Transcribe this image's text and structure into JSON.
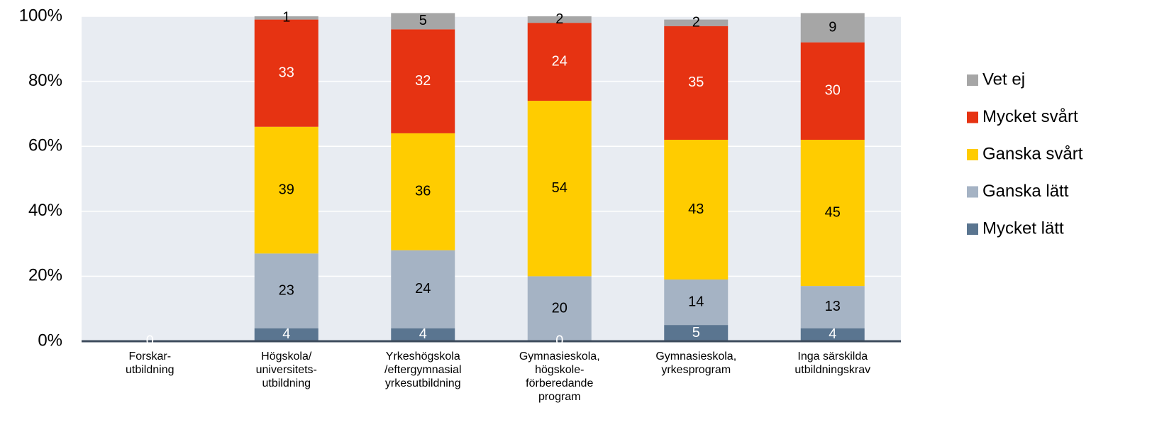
{
  "chart_data": {
    "type": "stacked_bar",
    "categories": [
      [
        "Forskar-",
        "utbildning"
      ],
      [
        "Högskola/",
        "universitets-",
        "utbildning"
      ],
      [
        "Yrkeshögskola",
        "/eftergymnasial",
        "yrkesutbildning"
      ],
      [
        "Gymnasieskola,",
        "högskole-",
        "förberedande",
        "program"
      ],
      [
        "Gymnasieskola,",
        "yrkesprogram"
      ],
      [
        "Inga särskilda",
        "utbildningskrav"
      ]
    ],
    "series": [
      {
        "name": "Mycket lätt",
        "color": "#5a7590",
        "label_color": "#ffffff",
        "values": [
          0,
          4,
          4,
          0,
          5,
          4
        ]
      },
      {
        "name": "Ganska lätt",
        "color": "#a5b3c4",
        "label_color": "#000000",
        "values": [
          null,
          23,
          24,
          20,
          14,
          13
        ]
      },
      {
        "name": "Ganska svårt",
        "color": "#ffcc00",
        "label_color": "#000000",
        "values": [
          null,
          39,
          36,
          54,
          43,
          45
        ]
      },
      {
        "name": "Mycket svårt",
        "color": "#e63312",
        "label_color": "#ffffff",
        "values": [
          null,
          33,
          32,
          24,
          35,
          30
        ]
      },
      {
        "name": "Vet ej",
        "color": "#a6a6a6",
        "label_color": "#000000",
        "values": [
          null,
          1,
          5,
          2,
          2,
          9
        ]
      }
    ],
    "ylim": [
      0,
      100
    ],
    "yticks": [
      {
        "value": 0,
        "label": "0%"
      },
      {
        "value": 20,
        "label": "20%"
      },
      {
        "value": 40,
        "label": "40%"
      },
      {
        "value": 60,
        "label": "60%"
      },
      {
        "value": 80,
        "label": "80%"
      },
      {
        "value": 100,
        "label": "100%"
      }
    ],
    "grid": true,
    "legend": "right"
  }
}
